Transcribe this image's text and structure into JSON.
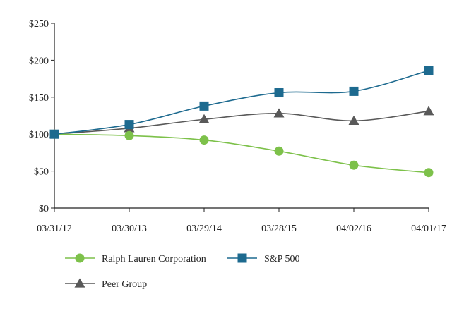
{
  "chart_data": {
    "type": "line",
    "title": "",
    "xlabel": "",
    "ylabel": "",
    "categories": [
      "03/31/12",
      "03/30/13",
      "03/29/14",
      "03/28/15",
      "04/02/16",
      "04/01/17"
    ],
    "y_ticks": [
      "$0",
      "$50",
      "$100",
      "$150",
      "$200",
      "$250"
    ],
    "y_tick_values": [
      0,
      50,
      100,
      150,
      200,
      250
    ],
    "ylim": [
      0,
      250
    ],
    "grid": false,
    "legend_position": "bottom",
    "series": [
      {
        "name": "Ralph Lauren Corporation",
        "marker": "circle",
        "color": "#7dc14a",
        "values": [
          100,
          98,
          92,
          77,
          58,
          48
        ]
      },
      {
        "name": "S&P 500",
        "marker": "square",
        "color": "#1d6a8f",
        "values": [
          100,
          113,
          138,
          156,
          158,
          186
        ]
      },
      {
        "name": "Peer Group",
        "marker": "triangle",
        "color": "#595959",
        "values": [
          100,
          108,
          120,
          128,
          118,
          131
        ]
      }
    ]
  }
}
